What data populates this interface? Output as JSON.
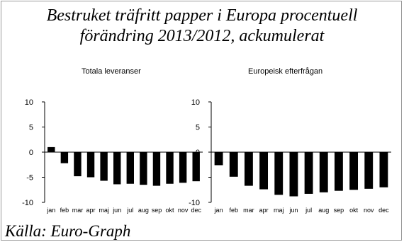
{
  "header": {
    "title_line1": "Bestruket träfritt papper i Europa procentuell",
    "title_line2": "förändring 2013/2012, ackumulerat"
  },
  "footer": {
    "source": "Källa: Euro-Graph"
  },
  "colors": {
    "bar": "#000000",
    "axis": "#000000",
    "frame": "#9a9a9a"
  },
  "chart_data": [
    {
      "type": "bar",
      "title": "Totala leveranser",
      "categories": [
        "jan",
        "feb",
        "mar",
        "apr",
        "maj",
        "jun",
        "jul",
        "aug",
        "sep",
        "okt",
        "nov",
        "dec"
      ],
      "values": [
        1.0,
        -2.2,
        -4.8,
        -5.0,
        -5.7,
        -6.4,
        -6.3,
        -6.5,
        -6.7,
        -6.3,
        -6.1,
        -5.8
      ],
      "ylim": [
        -10,
        10
      ],
      "yticks": [
        10,
        5,
        0,
        -5,
        -10
      ],
      "xlabel": "",
      "ylabel": "",
      "grid": false
    },
    {
      "type": "bar",
      "title": "Europeisk efterfrågan",
      "categories": [
        "jan",
        "feb",
        "mar",
        "apr",
        "maj",
        "jun",
        "jul",
        "aug",
        "sep",
        "okt",
        "nov",
        "dec"
      ],
      "values": [
        -2.6,
        -4.9,
        -6.7,
        -7.4,
        -8.5,
        -8.8,
        -8.3,
        -8.0,
        -7.7,
        -7.5,
        -7.3,
        -7.0
      ],
      "ylim": [
        -10,
        10
      ],
      "yticks": [
        10,
        5,
        0,
        -5,
        -10
      ],
      "xlabel": "",
      "ylabel": "",
      "grid": false
    }
  ]
}
